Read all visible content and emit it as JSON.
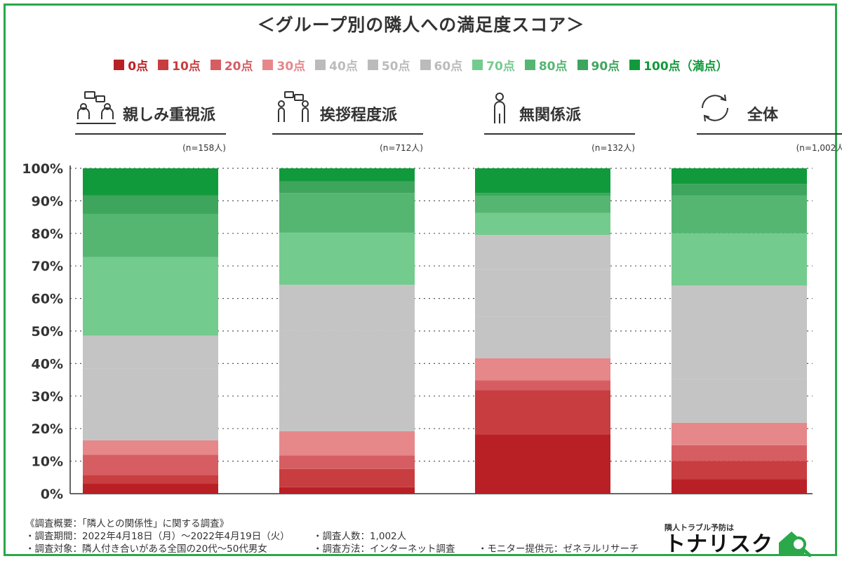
{
  "title": "＜グループ別の隣人への満足度スコア＞",
  "colors": {
    "frame": "#2aa84a",
    "score_0": "#b92025",
    "score_10": "#c83d40",
    "score_20": "#d65e62",
    "score_30": "#e6878a",
    "score_40": "#c4c4c4",
    "score_50": "#c4c4c4",
    "score_60": "#c4c4c4",
    "score_70": "#74cb8e",
    "score_80": "#55b672",
    "score_90": "#3ea55c",
    "score_100": "#119a3b"
  },
  "legend": [
    {
      "label": "0点",
      "color": "#b92025"
    },
    {
      "label": "10点",
      "color": "#c83d40"
    },
    {
      "label": "20点",
      "color": "#d65e62"
    },
    {
      "label": "30点",
      "color": "#e6878a"
    },
    {
      "label": "40点",
      "color": "#bbbbbb"
    },
    {
      "label": "50点",
      "color": "#bbbbbb"
    },
    {
      "label": "60点",
      "color": "#bbbbbb"
    },
    {
      "label": "70点",
      "color": "#74cb8e"
    },
    {
      "label": "80点",
      "color": "#55b672"
    },
    {
      "label": "90点",
      "color": "#3ea55c"
    },
    {
      "label": "100点（満点）",
      "color": "#119a3b"
    }
  ],
  "groups": [
    {
      "name": "親しみ重視派",
      "n": "(n=158人)",
      "icon": "people-chatting-icon"
    },
    {
      "name": "挨拶程度派",
      "n": "(n=712人)",
      "icon": "people-greeting-icon"
    },
    {
      "name": "無関係派",
      "n": "(n=132人)",
      "icon": "person-alone-icon"
    },
    {
      "name": "全体",
      "n": "(n=1,002人)",
      "icon": "cycle-arrows-icon"
    }
  ],
  "chart_data": {
    "type": "bar",
    "stacked": true,
    "categories": [
      "親しみ重視派",
      "挨拶程度派",
      "無関係派",
      "全体"
    ],
    "ylim": [
      0,
      100
    ],
    "yticks": [
      "0%",
      "10%",
      "20%",
      "30%",
      "40%",
      "50%",
      "60%",
      "70%",
      "80%",
      "90%",
      "100%"
    ],
    "grid": true,
    "series": [
      {
        "name": "0点",
        "values": [
          3.2,
          2.0,
          18.2,
          4.5
        ]
      },
      {
        "name": "10点",
        "values": [
          2.5,
          5.6,
          13.6,
          5.6
        ]
      },
      {
        "name": "20点",
        "values": [
          6.3,
          4.2,
          3.0,
          4.8
        ]
      },
      {
        "name": "30点",
        "values": [
          4.4,
          7.4,
          6.8,
          6.9
        ]
      },
      {
        "name": "40点",
        "values": [
          10.1,
          14.0,
          12.9,
          13.4
        ]
      },
      {
        "name": "50点",
        "values": [
          12.0,
          17.0,
          14.4,
          16.2
        ]
      },
      {
        "name": "60点",
        "values": [
          10.1,
          14.0,
          10.6,
          12.6
        ]
      },
      {
        "name": "70点",
        "values": [
          24.1,
          16.0,
          6.8,
          16.0
        ]
      },
      {
        "name": "80点",
        "values": [
          13.3,
          12.2,
          5.3,
          11.7
        ]
      },
      {
        "name": "90点",
        "values": [
          5.7,
          3.6,
          0.8,
          3.5
        ]
      },
      {
        "name": "100点（満点）",
        "values": [
          8.3,
          4.0,
          7.6,
          4.8
        ]
      }
    ]
  },
  "footer": {
    "overview": "《調査概要：「隣人との関係性」に関する調査》",
    "period": "・調査期間：2022年4月18日（月）～2022年4月19日（火）",
    "count": "・調査人数：1,002人",
    "target": "・調査対象：隣人付き合いがある全国の20代～50代男女",
    "method": "・調査方法：インターネット調査",
    "provider": "・モニター提供元：ゼネラルリサーチ"
  },
  "brand": {
    "tagline": "隣人トラブル予防は",
    "name": "トナリスク",
    "icon": "house-search-icon",
    "color": "#2aa84a"
  }
}
